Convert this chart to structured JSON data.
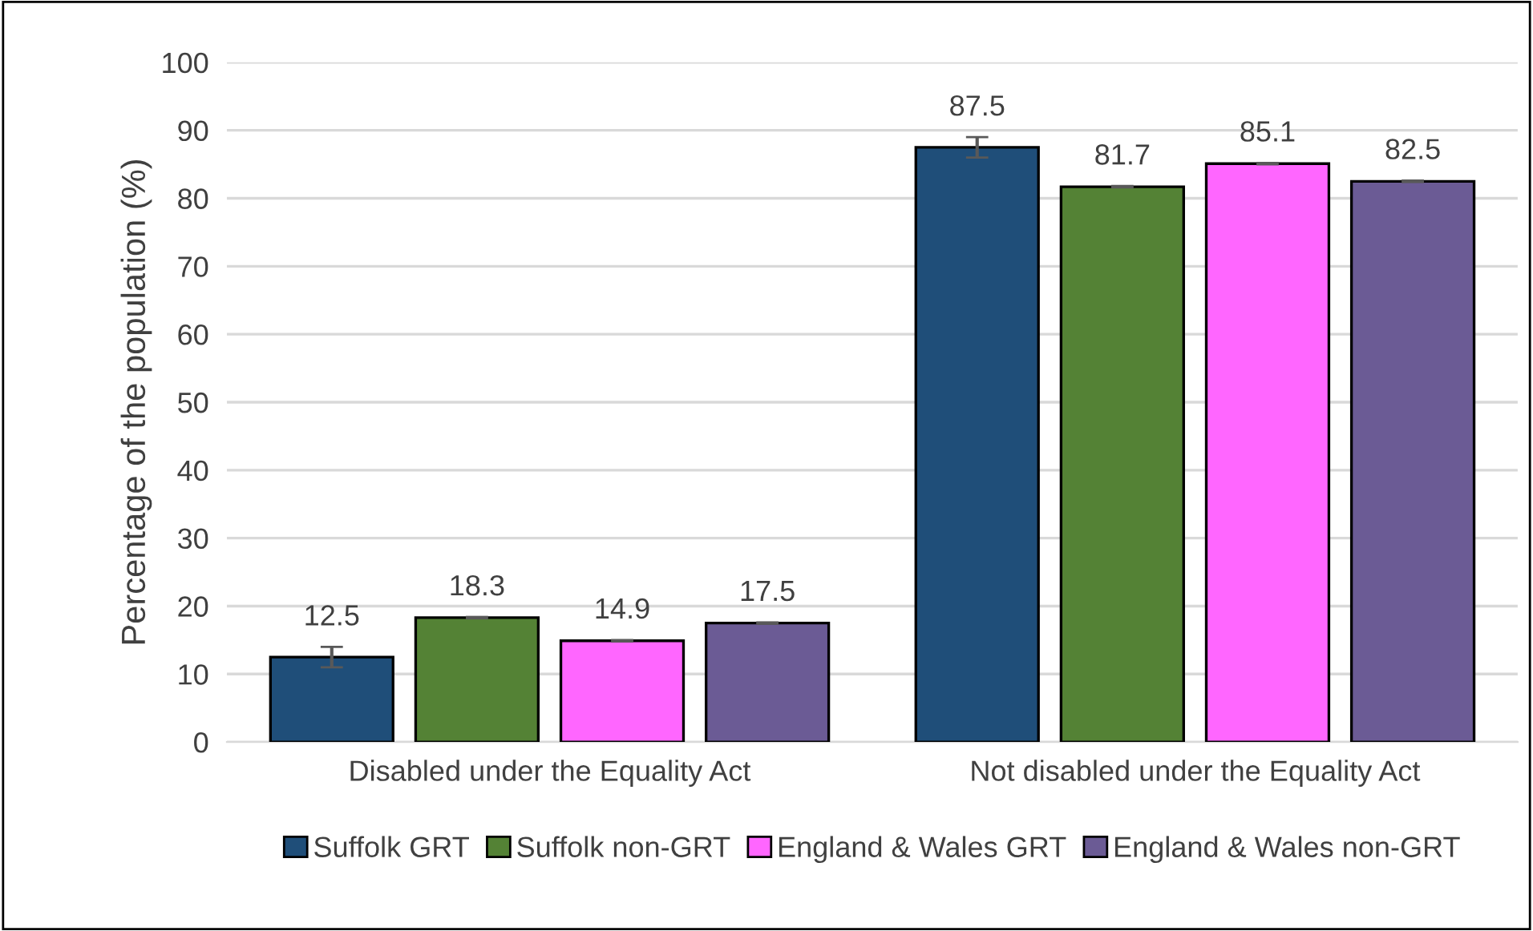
{
  "chart_data": {
    "type": "bar",
    "ylabel": "Percentage of the population (%)",
    "categories": [
      "Disabled under the Equality Act",
      "Not disabled under the Equality Act"
    ],
    "series": [
      {
        "name": "Suffolk GRT",
        "color": "#1f4e79",
        "values": [
          12.5,
          87.5
        ],
        "errors": [
          1.5,
          1.5
        ]
      },
      {
        "name": "Suffolk non-GRT",
        "color": "#548235",
        "values": [
          18.3,
          81.7
        ],
        "errors": [
          0.1,
          0.1
        ]
      },
      {
        "name": "England & Wales GRT",
        "color": "#ff66ff",
        "values": [
          14.9,
          85.1
        ],
        "errors": [
          0.1,
          0.1
        ]
      },
      {
        "name": "England & Wales non-GRT",
        "color": "#6b5b95",
        "values": [
          17.5,
          82.5
        ],
        "errors": [
          0.1,
          0.1
        ]
      }
    ],
    "ylim": [
      0,
      100
    ],
    "yticks": [
      0,
      10,
      20,
      30,
      40,
      50,
      60,
      70,
      80,
      90,
      100
    ],
    "grid": "y",
    "legend": "bottom",
    "data_labels": true
  }
}
